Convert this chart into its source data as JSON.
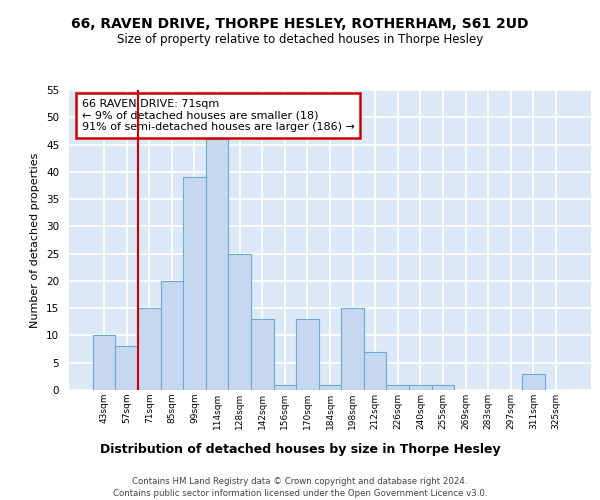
{
  "title": "66, RAVEN DRIVE, THORPE HESLEY, ROTHERHAM, S61 2UD",
  "subtitle": "Size of property relative to detached houses in Thorpe Hesley",
  "xlabel": "Distribution of detached houses by size in Thorpe Hesley",
  "ylabel": "Number of detached properties",
  "bar_labels": [
    "43sqm",
    "57sqm",
    "71sqm",
    "85sqm",
    "99sqm",
    "114sqm",
    "128sqm",
    "142sqm",
    "156sqm",
    "170sqm",
    "184sqm",
    "198sqm",
    "212sqm",
    "226sqm",
    "240sqm",
    "255sqm",
    "269sqm",
    "283sqm",
    "297sqm",
    "311sqm",
    "325sqm"
  ],
  "bar_values": [
    10,
    8,
    15,
    20,
    39,
    46,
    25,
    13,
    1,
    13,
    1,
    15,
    7,
    1,
    1,
    1,
    0,
    0,
    0,
    3,
    0
  ],
  "bar_color": "#c5d8f0",
  "bar_edge_color": "#6aaad4",
  "highlight_index": 2,
  "highlight_line_color": "#cc0000",
  "annotation_text": "66 RAVEN DRIVE: 71sqm\n← 9% of detached houses are smaller (18)\n91% of semi-detached houses are larger (186) →",
  "annotation_box_color": "#ffffff",
  "annotation_box_edge_color": "#cc0000",
  "ylim": [
    0,
    55
  ],
  "yticks": [
    0,
    5,
    10,
    15,
    20,
    25,
    30,
    35,
    40,
    45,
    50,
    55
  ],
  "background_color": "#dce8f5",
  "grid_color": "#ffffff",
  "fig_bg_color": "#ffffff",
  "footer_line1": "Contains HM Land Registry data © Crown copyright and database right 2024.",
  "footer_line2": "Contains public sector information licensed under the Open Government Licence v3.0."
}
